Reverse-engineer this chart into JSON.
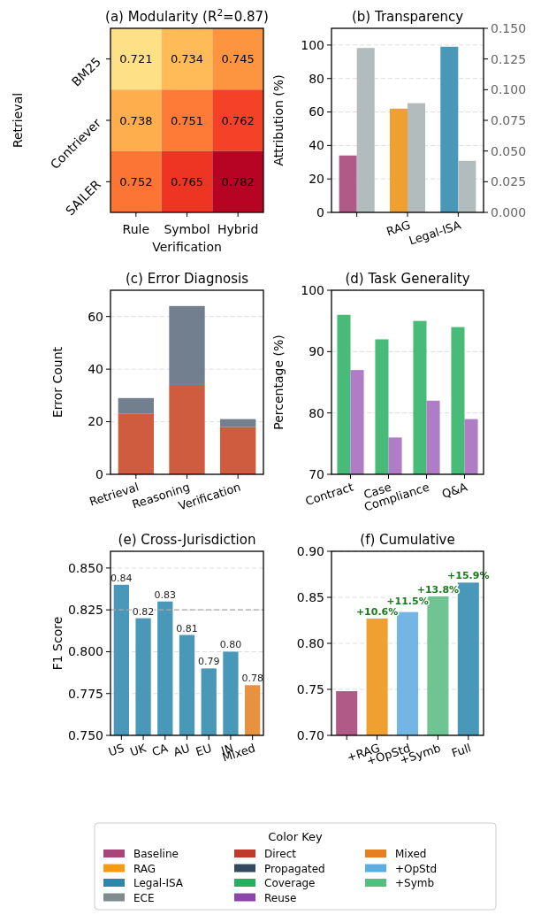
{
  "chart_data": [
    {
      "type": "heatmap",
      "title": "(a) Modularity (R$^{2}$=0.87)",
      "xlabel": "Verification",
      "ylabel": "Retrieval",
      "categories": [
        "Rule",
        "Symbol",
        "Hybrid"
      ],
      "y_categories": [
        "BM25",
        "Contriever",
        "SAILER"
      ],
      "cells": [
        [
          0.721,
          0.734,
          0.745
        ],
        [
          0.738,
          0.751,
          0.762
        ],
        [
          0.752,
          0.765,
          0.782
        ]
      ],
      "data_labels": true
    },
    {
      "type": "bar",
      "title": "(b) Transparency",
      "ylabel": "Attribution (%)",
      "categories": [
        null,
        "RAG",
        "Legal-ISA"
      ],
      "ylim": [
        0,
        110
      ],
      "yticks": [
        0,
        20,
        40,
        60,
        80,
        100
      ],
      "y2lim": [
        0,
        0.15
      ],
      "y2ticks": [
        {
          "value": 0,
          "label": "0.000"
        },
        {
          "value": 0.025,
          "label": "0.025"
        },
        {
          "value": 0.05,
          "label": "0.050"
        },
        {
          "value": 0.075,
          "label": "0.075"
        },
        {
          "value": 0.1,
          "label": "0.100"
        },
        {
          "value": 0.125,
          "label": "0.125"
        },
        {
          "value": 0.15,
          "label": "0.150"
        }
      ],
      "grid": "y",
      "series": [
        {
          "values": [
            34,
            62,
            99
          ],
          "colors": [
            "#b05a87",
            "#f0a030",
            "#4a98b8"
          ]
        },
        {
          "values": [
            0.134,
            0.089,
            0.042
          ],
          "color": "#b3bcbc",
          "axis": "y2"
        }
      ]
    },
    {
      "type": "bar",
      "title": "(c) Error Diagnosis",
      "ylabel": "Error Count",
      "categories": [
        "Retrieval",
        "Reasoning",
        "Verification"
      ],
      "ylim": [
        0,
        70
      ],
      "yticks": [
        0,
        20,
        40,
        60
      ],
      "grid": "y",
      "stacked": true,
      "series": [
        {
          "values": [
            23,
            34,
            18
          ],
          "color": "#cf5c3e"
        },
        {
          "values": [
            6,
            30,
            3
          ],
          "color": "#717f8f"
        }
      ]
    },
    {
      "type": "bar",
      "title": "(d) Task Generality",
      "ylabel": "Percentage (%)",
      "categories": [
        "Contract",
        "Case",
        "Compliance",
        "Q&A"
      ],
      "ylim": [
        70,
        100
      ],
      "yticks": [
        70,
        80,
        90,
        100
      ],
      "grid": "y",
      "series": [
        {
          "values": [
            96,
            92,
            95,
            94
          ],
          "color": "#48bb78"
        },
        {
          "values": [
            87,
            76,
            82,
            79
          ],
          "color": "#b07cc6"
        }
      ]
    },
    {
      "type": "bar",
      "title": "(e) Cross-Jurisdiction",
      "ylabel": "F1 Score",
      "categories": [
        "US",
        "UK",
        "CA",
        "AU",
        "EU",
        "IN",
        "Mixed"
      ],
      "ylim": [
        0.75,
        0.86
      ],
      "yticks": [
        {
          "value": 0.75,
          "label": "0.750"
        },
        {
          "value": 0.775,
          "label": "0.775"
        },
        {
          "value": 0.8,
          "label": "0.800"
        },
        {
          "value": 0.825,
          "label": "0.825"
        },
        {
          "value": 0.85,
          "label": "0.850"
        }
      ],
      "grid": "y",
      "values": [
        0.84,
        0.82,
        0.83,
        0.81,
        0.79,
        0.8,
        0.78
      ],
      "colors": [
        "#4a98b8",
        "#4a98b8",
        "#4a98b8",
        "#4a98b8",
        "#4a98b8",
        "#4a98b8",
        "#e8913f"
      ],
      "value_labels": [
        "0.84",
        "0.82",
        "0.83",
        "0.81",
        "0.79",
        "0.80",
        "0.78"
      ],
      "ref_lines": [
        {
          "axis": "y",
          "value": 0.825,
          "color": "#aaaaaa",
          "line_style": "dashed"
        }
      ]
    },
    {
      "type": "bar",
      "title": "(f) Cumulative",
      "categories": [
        null,
        "+RAG",
        "+OpStd",
        "+Symb",
        "Full"
      ],
      "ylim": [
        0.7,
        0.9
      ],
      "yticks": [
        {
          "value": 0.7,
          "label": "0.70"
        },
        {
          "value": 0.75,
          "label": "0.75"
        },
        {
          "value": 0.8,
          "label": "0.80"
        },
        {
          "value": 0.85,
          "label": "0.85"
        },
        {
          "value": 0.9,
          "label": "0.90"
        }
      ],
      "grid": "y",
      "values": [
        0.748,
        0.827,
        0.834,
        0.851,
        0.866
      ],
      "colors": [
        "#b05a87",
        "#f0a030",
        "#74b6e3",
        "#6fc592",
        "#4a98b8"
      ],
      "annotations": [
        {
          "text": "+10.6%",
          "x": "+RAG",
          "y": 0.827
        },
        {
          "text": "+11.5%",
          "x": "+OpStd",
          "y": 0.834
        },
        {
          "text": "+13.8%",
          "x": "+Symb",
          "y": 0.851
        },
        {
          "text": "+15.9%",
          "x": "Full",
          "y": 0.866
        }
      ]
    },
    {
      "type": "other",
      "title": "Color Key",
      "categories": [
        "Baseline",
        "RAG",
        "Legal-ISA",
        "ECE",
        "Direct",
        "Propagated",
        "Coverage",
        "Reuse",
        "Mixed",
        "+OpStd",
        "+Symb"
      ],
      "colors": [
        "#a8457a",
        "#f39c12",
        "#2e86ab",
        "#7f8c8d",
        "#c0392b",
        "#34495e",
        "#27ae60",
        "#8e44ad",
        "#e67e22",
        "#5dade2",
        "#52be80"
      ]
    }
  ]
}
